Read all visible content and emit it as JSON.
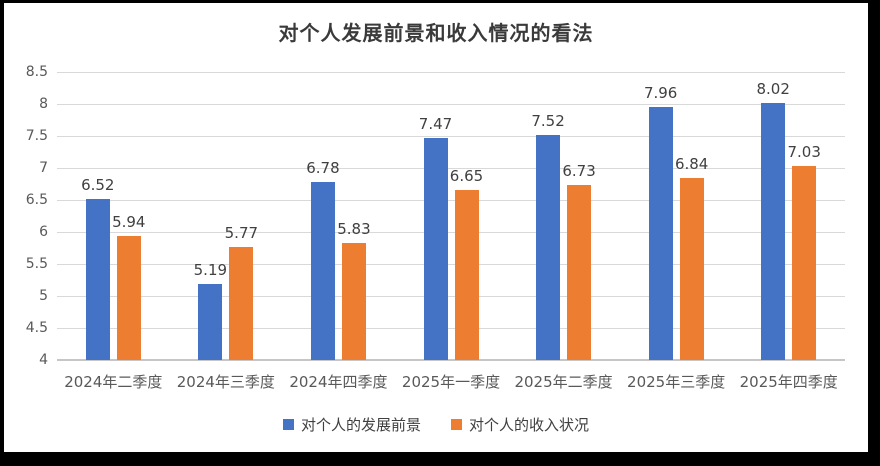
{
  "chart_data": {
    "type": "bar",
    "title": "对个人发展前景和收入情况的看法",
    "categories": [
      "2024年二季度",
      "2024年三季度",
      "2024年四季度",
      "2025年一季度",
      "2025年二季度",
      "2025年三季度",
      "2025年四季度"
    ],
    "series": [
      {
        "name": "对个人的发展前景",
        "color": "#4472C4",
        "values": [
          6.52,
          5.19,
          6.78,
          7.47,
          7.52,
          7.96,
          8.02
        ]
      },
      {
        "name": "对个人的收入状况",
        "color": "#ED7D31",
        "values": [
          5.94,
          5.77,
          5.83,
          6.65,
          6.73,
          6.84,
          7.03
        ]
      }
    ],
    "xlabel": "",
    "ylabel": "",
    "ylim": [
      4,
      8.5
    ],
    "ytick_labels": [
      "4",
      "4.5",
      "5",
      "5.5",
      "6",
      "6.5",
      "7",
      "7.5",
      "8",
      "8.5"
    ],
    "grid": true,
    "legend_position": "bottom",
    "value_label_decimals": 2
  }
}
